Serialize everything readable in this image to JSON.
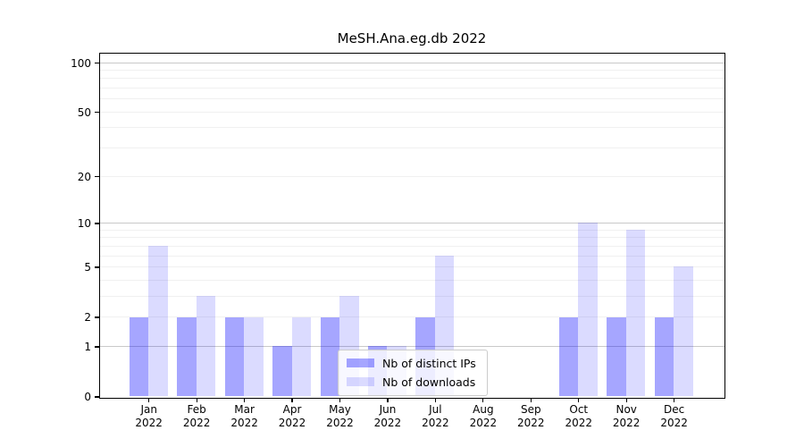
{
  "chart_data": {
    "type": "bar",
    "title": "MeSH.Ana.eg.db 2022",
    "year": "2022",
    "categories": [
      "Jan",
      "Feb",
      "Mar",
      "Apr",
      "May",
      "Jun",
      "Jul",
      "Aug",
      "Sep",
      "Oct",
      "Nov",
      "Dec"
    ],
    "series": [
      {
        "key": "distinct-ips",
        "name": "Nb of distinct IPs",
        "color": "#0000ff",
        "alpha": 0.35,
        "values": [
          2,
          2,
          2,
          1,
          2,
          1,
          2,
          0,
          0,
          2,
          2,
          2
        ]
      },
      {
        "key": "downloads",
        "name": "Nb of downloads",
        "color": "#0000ff",
        "alpha": 0.14,
        "values": [
          7,
          3,
          2,
          2,
          3,
          1,
          6,
          0,
          0,
          10,
          9,
          5
        ]
      }
    ],
    "xlabel": "",
    "ylabel": "",
    "yscale": "log1p",
    "ylim": [
      0,
      114
    ],
    "yticks": [
      0,
      1,
      2,
      5,
      10,
      20,
      50,
      100
    ],
    "major_gridlines": [
      1,
      10,
      100
    ],
    "minor_gridlines": [
      2,
      3,
      4,
      5,
      6,
      7,
      8,
      9,
      20,
      30,
      40,
      50,
      60,
      70,
      80,
      90
    ],
    "major_grid_color": "#c9c9c9",
    "minor_grid_color": "#f0f0f0",
    "axis_color": "#000000",
    "grid": true,
    "legend_position": "lower center"
  }
}
